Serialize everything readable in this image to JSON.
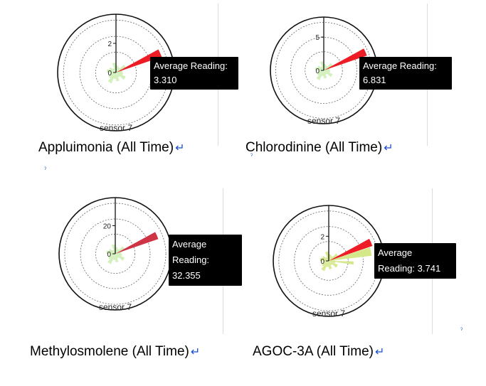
{
  "charts": [
    {
      "caption": "Appluimonia (All Time)",
      "return_mark": "↵",
      "sensor_label": "sensor 7",
      "tooltip_label": "Average Reading:",
      "tooltip_value": "3.310",
      "ticks": [
        "0",
        "2"
      ]
    },
    {
      "caption": "Chlorodinine (All Time)",
      "return_mark": "↵",
      "sensor_label": "sensor 7",
      "tooltip_label": "Average Reading:",
      "tooltip_value": "6.831",
      "ticks": [
        "0",
        "5"
      ]
    },
    {
      "caption": "Methylosmolene (All Time)",
      "return_mark": "↵",
      "sensor_label": "sensor 7",
      "tooltip_label": "Average",
      "tooltip_label2": "Reading:",
      "tooltip_value": "32.355",
      "ticks": [
        "0",
        "20"
      ]
    },
    {
      "caption": "AGOC-3A (All Time)",
      "return_mark": "↵",
      "sensor_label": "sensor 7",
      "tooltip_label": "Average",
      "tooltip_label2": "Reading: 3.741",
      "ticks": [
        "0",
        "2"
      ]
    }
  ],
  "chart_data": [
    {
      "type": "polar-bar",
      "title": "Appluimonia (All Time)",
      "highlight_label": "sensor 7",
      "r_ticks": [
        0,
        2
      ],
      "r_max": 4,
      "highlight": {
        "value": 3.31,
        "color": "#ee1c24"
      },
      "other_color": "#cdeeb4"
    },
    {
      "type": "polar-bar",
      "title": "Chlorodinine (All Time)",
      "highlight_label": "sensor 7",
      "r_ticks": [
        0,
        5
      ],
      "r_max": 8,
      "highlight": {
        "value": 6.831,
        "color": "#ee1c24"
      },
      "other_color": "#cdeeb4"
    },
    {
      "type": "polar-bar",
      "title": "Methylosmolene (All Time)",
      "highlight_label": "sensor 7",
      "r_ticks": [
        0,
        20
      ],
      "r_max": 40,
      "highlight": {
        "value": 32.355,
        "color": "#cf3346"
      },
      "other_color": "#cdeeb4"
    },
    {
      "type": "polar-bar",
      "title": "AGOC-3A (All Time)",
      "highlight_label": "sensor 7",
      "r_ticks": [
        0,
        2
      ],
      "r_max": 4.5,
      "highlight": {
        "value": 3.741,
        "color": "#ee1c24"
      },
      "other_color": "#d4e88a"
    }
  ]
}
